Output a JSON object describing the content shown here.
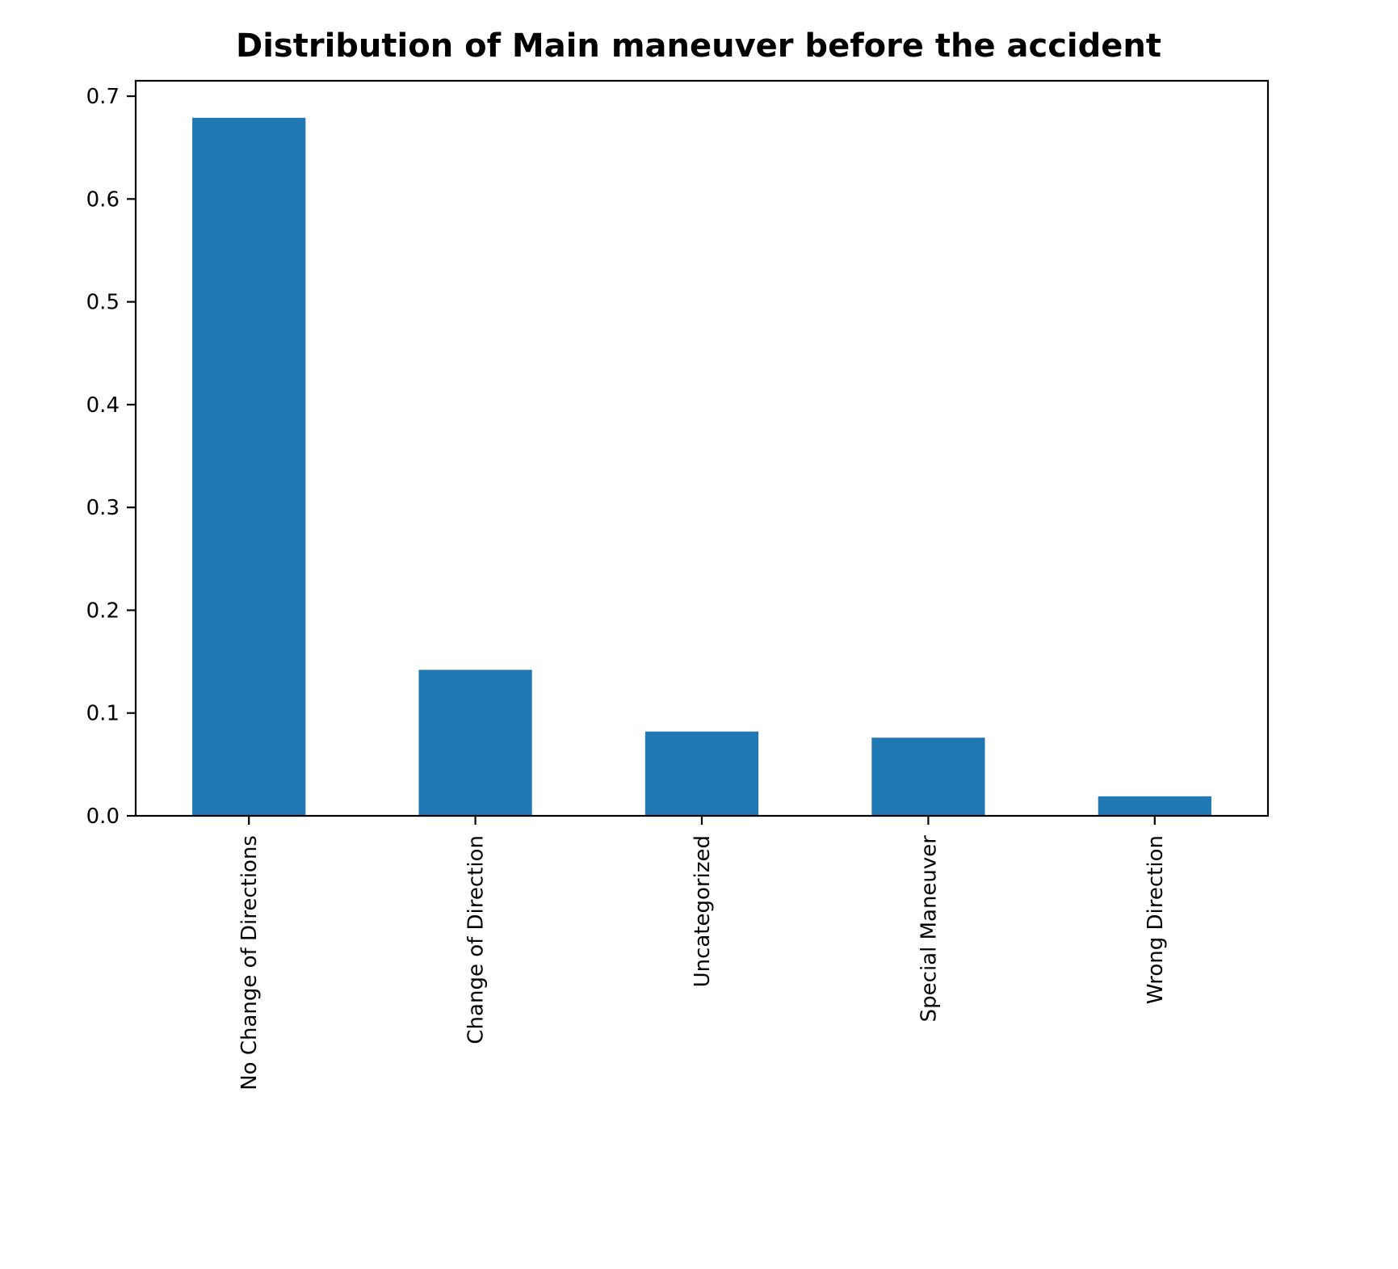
{
  "chart_data": {
    "type": "bar",
    "title": "Distribution of Main maneuver before the accident",
    "xlabel": "",
    "ylabel": "",
    "categories": [
      "No Change of Directions",
      "Change of Direction",
      "Uncategorized",
      "Special Maneuver",
      "Wrong Direction"
    ],
    "values": [
      0.679,
      0.142,
      0.082,
      0.076,
      0.019
    ],
    "ylim": [
      0,
      0.715
    ],
    "yticks": [
      0.0,
      0.1,
      0.2,
      0.3,
      0.4,
      0.5,
      0.6,
      0.7
    ],
    "ytick_labels": [
      "0.0",
      "0.1",
      "0.2",
      "0.3",
      "0.4",
      "0.5",
      "0.6",
      "0.7"
    ],
    "grid": false,
    "legend": "none",
    "bar_color": "#1f77b4"
  }
}
